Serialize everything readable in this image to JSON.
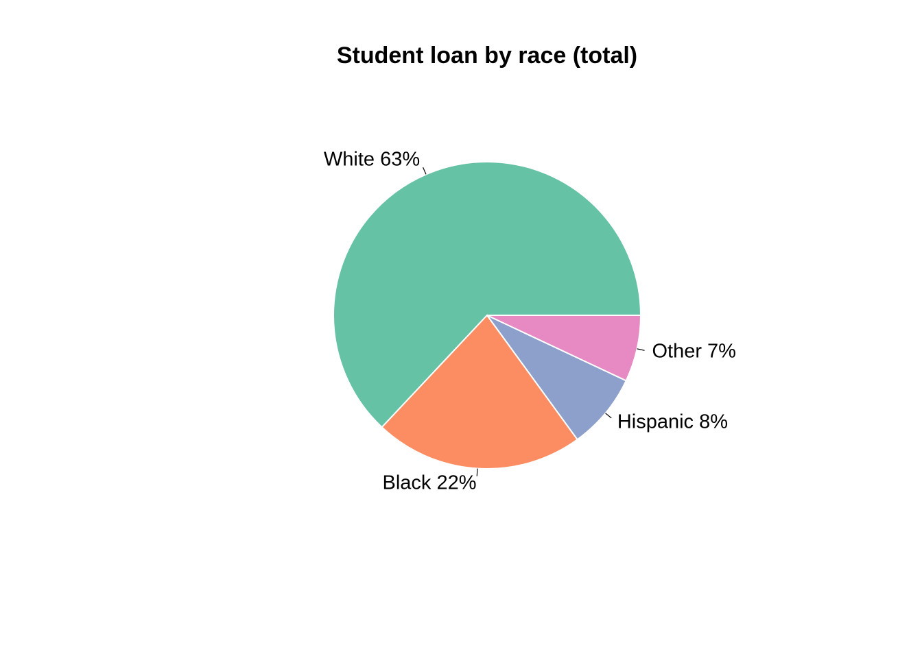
{
  "chart_data": {
    "type": "pie",
    "title": "Student loan by race (total)",
    "slices": [
      {
        "name": "White",
        "value": 63,
        "label": "White 63%",
        "color": "#66C2A5"
      },
      {
        "name": "Black",
        "value": 22,
        "label": "Black 22%",
        "color": "#FC8D62"
      },
      {
        "name": "Hispanic",
        "value": 8,
        "label": "Hispanic 8%",
        "color": "#8DA0CB"
      },
      {
        "name": "Other",
        "value": 7,
        "label": "Other 7%",
        "color": "#E78AC3"
      }
    ],
    "start_angle_deg": 0,
    "direction": "counterclockwise",
    "slice_border_color": "#FFFFFF",
    "legend": "none"
  }
}
